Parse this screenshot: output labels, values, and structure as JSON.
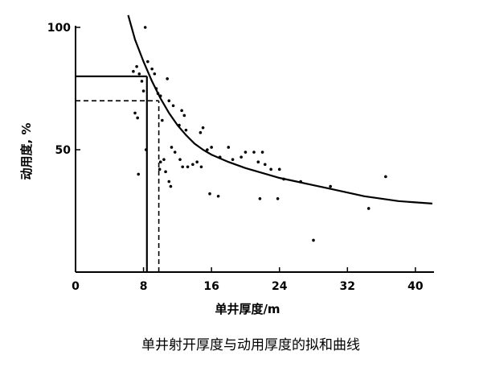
{
  "chart_data": {
    "type": "scatter",
    "title": "",
    "caption": "单井射开厚度与动用厚度的拟和曲线",
    "xlabel": "单井厚度/m",
    "ylabel": "动用度, %",
    "xlim": [
      0,
      42
    ],
    "ylim": [
      0,
      100
    ],
    "x_ticks": [
      0,
      8,
      16,
      24,
      32,
      40
    ],
    "y_ticks": [
      50,
      100
    ],
    "grid": false,
    "colors": {
      "ink": "#000000"
    },
    "fit_curve": {
      "name": "",
      "points": [
        {
          "x": 6.2,
          "y": 105
        },
        {
          "x": 7,
          "y": 95
        },
        {
          "x": 8,
          "y": 86
        },
        {
          "x": 9,
          "y": 78
        },
        {
          "x": 10,
          "y": 71
        },
        {
          "x": 11,
          "y": 65
        },
        {
          "x": 12,
          "y": 60
        },
        {
          "x": 13,
          "y": 56
        },
        {
          "x": 14,
          "y": 52.5
        },
        {
          "x": 15,
          "y": 50
        },
        {
          "x": 16,
          "y": 48
        },
        {
          "x": 18,
          "y": 45
        },
        {
          "x": 20,
          "y": 42.5
        },
        {
          "x": 22,
          "y": 40.5
        },
        {
          "x": 24,
          "y": 38.5
        },
        {
          "x": 26,
          "y": 37
        },
        {
          "x": 28,
          "y": 35.5
        },
        {
          "x": 30,
          "y": 34
        },
        {
          "x": 32,
          "y": 32.5
        },
        {
          "x": 34,
          "y": 31
        },
        {
          "x": 36,
          "y": 30
        },
        {
          "x": 38,
          "y": 29
        },
        {
          "x": 40,
          "y": 28.5
        },
        {
          "x": 42,
          "y": 28
        }
      ]
    },
    "guide_lines": [
      {
        "style": "solid",
        "x": 8.4,
        "y": 80
      },
      {
        "style": "dashed",
        "x": 9.8,
        "y": 70
      }
    ],
    "points": [
      {
        "x": 8.2,
        "y": 100
      },
      {
        "x": 6.8,
        "y": 82
      },
      {
        "x": 7.2,
        "y": 84
      },
      {
        "x": 7.5,
        "y": 81
      },
      {
        "x": 8.5,
        "y": 86
      },
      {
        "x": 9.0,
        "y": 83
      },
      {
        "x": 9.3,
        "y": 81
      },
      {
        "x": 7.8,
        "y": 78
      },
      {
        "x": 8.0,
        "y": 74
      },
      {
        "x": 9.5,
        "y": 75
      },
      {
        "x": 9.7,
        "y": 73
      },
      {
        "x": 10.0,
        "y": 72
      },
      {
        "x": 10.8,
        "y": 79
      },
      {
        "x": 11.0,
        "y": 70
      },
      {
        "x": 11.5,
        "y": 68
      },
      {
        "x": 7.0,
        "y": 65
      },
      {
        "x": 7.3,
        "y": 63
      },
      {
        "x": 10.2,
        "y": 62
      },
      {
        "x": 12.5,
        "y": 66
      },
      {
        "x": 12.8,
        "y": 64
      },
      {
        "x": 12.2,
        "y": 60
      },
      {
        "x": 13.0,
        "y": 58
      },
      {
        "x": 15.0,
        "y": 59
      },
      {
        "x": 14.7,
        "y": 57
      },
      {
        "x": 11.3,
        "y": 51
      },
      {
        "x": 11.7,
        "y": 49
      },
      {
        "x": 15.5,
        "y": 50
      },
      {
        "x": 16.0,
        "y": 51
      },
      {
        "x": 18.0,
        "y": 51
      },
      {
        "x": 8.3,
        "y": 50
      },
      {
        "x": 10.0,
        "y": 45
      },
      {
        "x": 10.4,
        "y": 46
      },
      {
        "x": 12.3,
        "y": 46
      },
      {
        "x": 12.6,
        "y": 43
      },
      {
        "x": 13.2,
        "y": 43
      },
      {
        "x": 13.8,
        "y": 44
      },
      {
        "x": 14.3,
        "y": 45
      },
      {
        "x": 14.8,
        "y": 43
      },
      {
        "x": 9.9,
        "y": 42
      },
      {
        "x": 10.6,
        "y": 41
      },
      {
        "x": 17.0,
        "y": 47
      },
      {
        "x": 18.5,
        "y": 46
      },
      {
        "x": 19.5,
        "y": 47
      },
      {
        "x": 20.0,
        "y": 49
      },
      {
        "x": 21.0,
        "y": 49
      },
      {
        "x": 22.0,
        "y": 49
      },
      {
        "x": 21.5,
        "y": 45
      },
      {
        "x": 22.3,
        "y": 44
      },
      {
        "x": 23.0,
        "y": 42
      },
      {
        "x": 24.0,
        "y": 42
      },
      {
        "x": 7.4,
        "y": 40
      },
      {
        "x": 11.0,
        "y": 37
      },
      {
        "x": 11.2,
        "y": 35
      },
      {
        "x": 24.5,
        "y": 38
      },
      {
        "x": 26.5,
        "y": 37
      },
      {
        "x": 30.0,
        "y": 35
      },
      {
        "x": 15.8,
        "y": 32
      },
      {
        "x": 16.8,
        "y": 31
      },
      {
        "x": 21.7,
        "y": 30
      },
      {
        "x": 23.8,
        "y": 30
      },
      {
        "x": 34.5,
        "y": 26
      },
      {
        "x": 36.5,
        "y": 39
      },
      {
        "x": 28.0,
        "y": 13
      }
    ]
  }
}
